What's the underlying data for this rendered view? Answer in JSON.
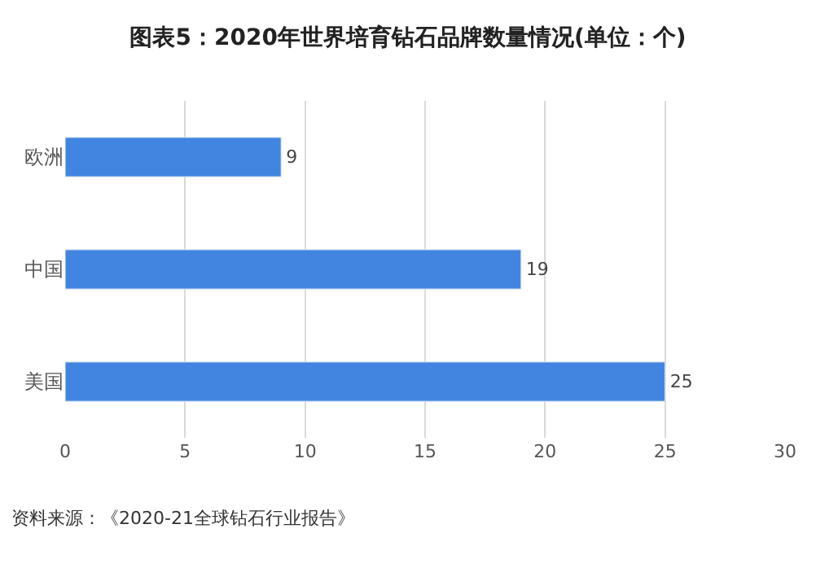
{
  "chart_data": {
    "type": "bar",
    "orientation": "horizontal",
    "title": "图表5：2020年世界培育钻石品牌数量情况(单位：个)",
    "categories": [
      "欧洲",
      "中国",
      "美国"
    ],
    "values": [
      9,
      19,
      25
    ],
    "color": "#4285e0",
    "xlim": [
      0,
      30
    ],
    "xticks": [
      0,
      5,
      10,
      15,
      20,
      25,
      30
    ],
    "grid": "x",
    "data_labels": true,
    "annotations": [
      "资料来源：《2020-21全球钻石行业报告》"
    ]
  }
}
